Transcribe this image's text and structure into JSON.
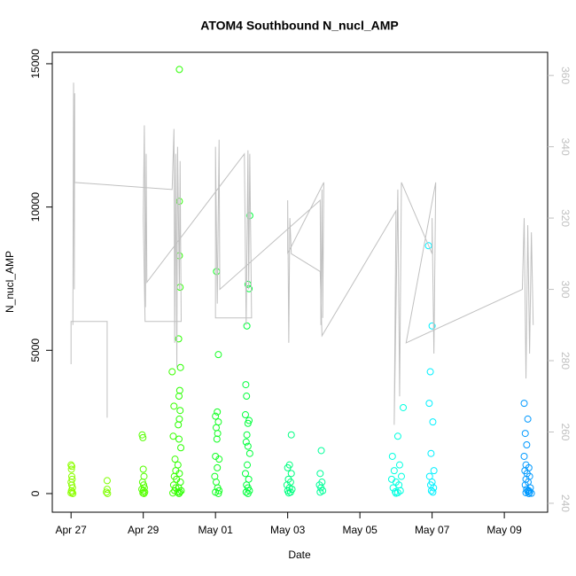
{
  "chart_data": {
    "type": "scatter",
    "title": "ATOM4 Southbound N_nucl_AMP",
    "x_label": "Date",
    "y_label": "N_nucl_AMP",
    "xlim": [
      -0.52,
      13.2
    ],
    "xticks": [
      {
        "value": 0,
        "label": "Apr 27"
      },
      {
        "value": 2,
        "label": "Apr 29"
      },
      {
        "value": 4,
        "label": "May 01"
      },
      {
        "value": 6,
        "label": "May 03"
      },
      {
        "value": 8,
        "label": "May 05"
      },
      {
        "value": 10,
        "label": "May 07"
      },
      {
        "value": 12,
        "label": "May 09"
      }
    ],
    "ylim": [
      -650,
      15400
    ],
    "yticks": [
      0,
      5000,
      10000,
      15000
    ],
    "y2lim": [
      237.5,
      366.5
    ],
    "y2ticks": [
      240,
      260,
      280,
      300,
      320,
      340,
      360
    ],
    "y2_color": "#c0c0c0",
    "series": [
      {
        "color": "#8cff00",
        "x": [
          0,
          0.02,
          0.01,
          0.03,
          0,
          0.02,
          0.04,
          0.01,
          0.03,
          0,
          0.05,
          0.02
        ],
        "values": [
          1000,
          950,
          850,
          500,
          400,
          300,
          200,
          100,
          50,
          20,
          0,
          600
        ]
      },
      {
        "color": "#7fff00",
        "x": [
          1.0,
          1.0,
          0.98,
          1.01
        ],
        "values": [
          450,
          150,
          50,
          0
        ]
      },
      {
        "color": "#55ff00",
        "x": [
          1.97,
          1.99,
          2.0,
          2.02,
          1.98,
          2.01,
          2.03,
          1.96,
          2.0,
          2.04,
          1.99,
          2.02
        ],
        "values": [
          2050,
          1950,
          850,
          600,
          400,
          300,
          200,
          150,
          100,
          50,
          20,
          0
        ]
      },
      {
        "color": "#3cff00",
        "x": [
          2.8,
          2.85,
          2.83,
          2.88,
          2.9,
          2.86,
          2.92,
          2.84,
          2.9,
          2.87,
          2.95,
          2.82
        ],
        "values": [
          4250,
          3050,
          2000,
          1200,
          800,
          600,
          500,
          300,
          200,
          100,
          50,
          20
        ]
      },
      {
        "color": "#2aff00",
        "x": [
          3.0,
          3.0,
          3.0,
          3.02,
          2.98,
          3.03,
          3.01,
          2.99,
          3.02,
          3.0,
          2.97,
          2.99,
          3.04,
          2.96,
          3.0,
          3.03,
          2.98,
          3.05,
          3.01,
          2.99
        ],
        "values": [
          14800,
          10200,
          8300,
          7200,
          5400,
          4400,
          3600,
          3400,
          2900,
          2600,
          2400,
          1900,
          1600,
          1000,
          700,
          400,
          200,
          100,
          50,
          0
        ]
      },
      {
        "color": "#11ff22",
        "x": [
          4.03,
          4.08,
          4.05,
          4.0,
          4.08,
          4.02,
          4.06,
          4.04,
          4.0,
          4.1,
          4.05,
          3.98,
          4.02,
          4.06,
          4.1,
          4.0,
          4.08
        ],
        "values": [
          7750,
          4850,
          2850,
          2700,
          2500,
          2300,
          2100,
          1900,
          1300,
          1200,
          900,
          600,
          400,
          200,
          100,
          50,
          0
        ]
      },
      {
        "color": "#00ff3c",
        "x": [
          4.95,
          4.9,
          4.93,
          4.87,
          4.84,
          4.86,
          4.83,
          4.93,
          4.9,
          4.87,
          4.85,
          4.9,
          4.95,
          4.88,
          4.83,
          4.92,
          4.86,
          4.9,
          4.94,
          4.85,
          4.9
        ],
        "values": [
          9700,
          7300,
          7150,
          5850,
          3800,
          3400,
          2750,
          2550,
          2450,
          2050,
          1800,
          1650,
          1400,
          1000,
          700,
          500,
          300,
          200,
          100,
          50,
          0
        ]
      },
      {
        "color": "#00ff80",
        "x": [
          6.1,
          6.05,
          6.0,
          6.1,
          6.02,
          6.08,
          5.98,
          6.05,
          6.12,
          6.0,
          6.08,
          6.03
        ],
        "values": [
          2050,
          1000,
          900,
          700,
          500,
          400,
          300,
          200,
          150,
          100,
          50,
          20
        ]
      },
      {
        "color": "#00ff99",
        "x": [
          6.93,
          6.9,
          6.95,
          6.88,
          6.92,
          6.97,
          6.9
        ],
        "values": [
          1500,
          700,
          400,
          300,
          200,
          100,
          50
        ]
      },
      {
        "color": "#00ffe0",
        "x": [
          9.2,
          9.05,
          8.9,
          9.1,
          8.95,
          9.15,
          8.88,
          9.0,
          9.08,
          8.92,
          9.12,
          8.98,
          9.05,
          9.0
        ],
        "values": [
          3000,
          2000,
          1300,
          1000,
          800,
          600,
          500,
          400,
          300,
          200,
          100,
          60,
          30,
          10
        ]
      },
      {
        "color": "#00f0ff",
        "x": [
          9.9,
          10.0,
          9.95,
          9.92,
          10.02,
          9.97,
          10.05,
          9.93,
          10.0,
          9.96,
          10.04,
          9.98,
          10.02
        ],
        "values": [
          8650,
          5850,
          4250,
          3150,
          2500,
          1400,
          800,
          600,
          400,
          300,
          200,
          100,
          50
        ]
      },
      {
        "color": "#0099ff",
        "x": [
          12.55,
          12.65,
          12.58,
          12.62,
          12.55,
          12.6,
          12.68,
          12.57,
          12.63,
          12.7,
          12.6,
          12.66,
          12.58,
          12.72,
          12.62,
          12.68,
          12.65,
          12.7,
          12.6,
          12.75,
          12.68
        ],
        "values": [
          3150,
          2600,
          2100,
          1700,
          1300,
          1000,
          900,
          800,
          700,
          600,
          500,
          400,
          300,
          200,
          150,
          100,
          80,
          50,
          30,
          10,
          0
        ]
      },
      {
        "type": "line",
        "axis": "y2",
        "color": "#c0c0c0",
        "x": [
          0,
          0,
          1,
          1,
          1,
          null,
          0.05,
          0.07,
          0.09,
          0.1,
          0.1,
          2.8,
          2.85,
          2.87,
          2.9,
          2.93,
          2.95,
          3.0,
          3.02,
          3.05,
          2.05,
          2.0,
          2.03,
          2.06,
          2.08,
          2.1,
          4.8,
          4.85,
          4.9,
          4.92,
          4.95,
          5.0,
          4.0,
          4.0,
          4.05,
          4.1,
          4.12,
          6.9,
          6.92,
          6.95,
          6.97,
          7.0,
          6.0,
          6.0,
          6.03,
          6.06,
          6.1,
          6.9,
          6.95,
          9.0,
          8.95,
          9.05,
          9.1,
          9.15,
          10.0,
          10.0,
          10.05,
          10.1,
          9.28,
          12.5,
          12.55,
          12.6,
          12.65,
          12.7,
          12.75,
          12.8
        ],
        "values": [
          279,
          291,
          291,
          264,
          272,
          null,
          290,
          358,
          300,
          355,
          330,
          328,
          345,
          285,
          338,
          278,
          340,
          300,
          336,
          291,
          291,
          320,
          346,
          295,
          338,
          302,
          338,
          290,
          339,
          300,
          338,
          292,
          292,
          340,
          296,
          342,
          300,
          325,
          290,
          328,
          292,
          330,
          310,
          325,
          285,
          320,
          310,
          305,
          287,
          322,
          262,
          328,
          270,
          330,
          310,
          320,
          282,
          330,
          285,
          300,
          320,
          275,
          318,
          282,
          316,
          290
        ]
      }
    ]
  }
}
